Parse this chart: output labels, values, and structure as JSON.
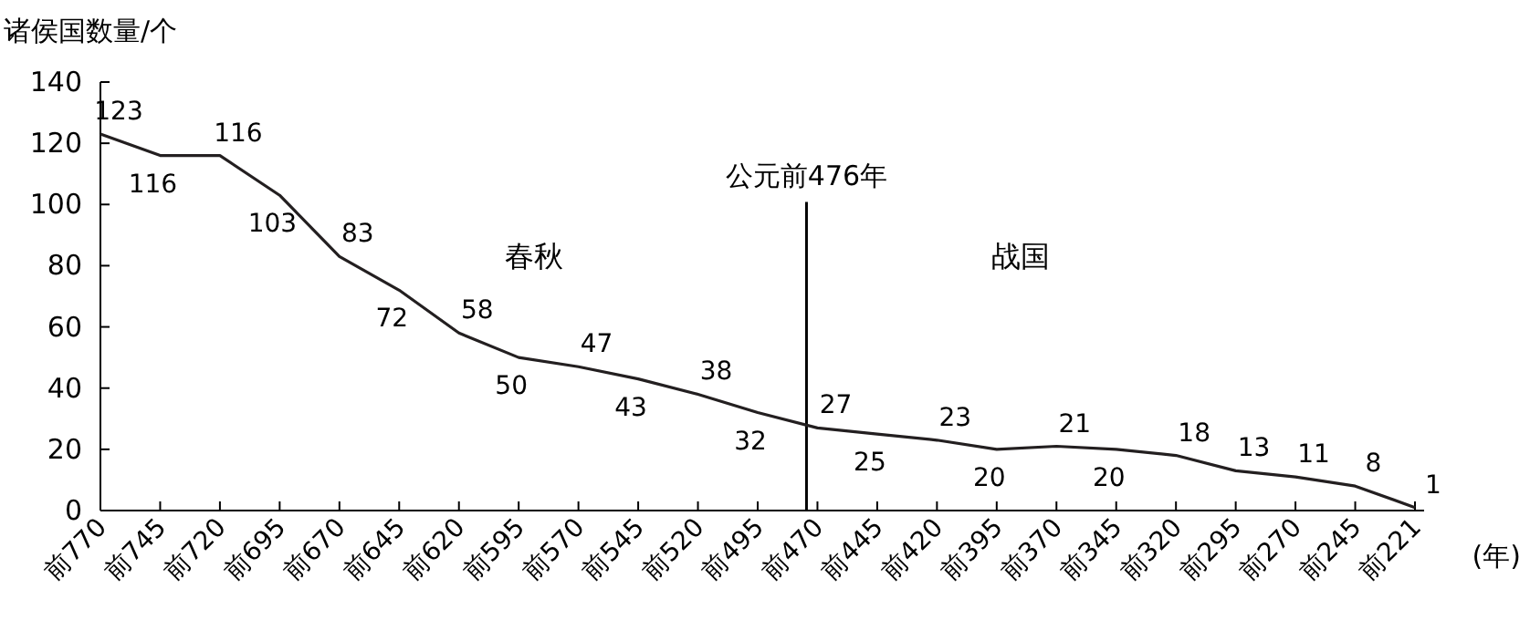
{
  "chart_data": {
    "type": "line",
    "ylabel": "诸侯国数量/个",
    "xlabel": "(年)",
    "categories": [
      "前770",
      "前745",
      "前720",
      "前695",
      "前670",
      "前645",
      "前620",
      "前595",
      "前570",
      "前545",
      "前520",
      "前495",
      "前470",
      "前445",
      "前420",
      "前395",
      "前370",
      "前345",
      "前320",
      "前295",
      "前270",
      "前245",
      "前221"
    ],
    "values": [
      123,
      116,
      116,
      103,
      83,
      72,
      58,
      50,
      47,
      43,
      38,
      32,
      27,
      25,
      23,
      20,
      21,
      20,
      18,
      13,
      11,
      8,
      1
    ],
    "color": "#231f20",
    "ylim": [
      0,
      140
    ],
    "yticks": [
      0,
      20,
      40,
      60,
      80,
      100,
      120,
      140
    ],
    "data_labels": true,
    "ref_lines": [
      {
        "axis": "x",
        "value": "前470",
        "label": "公元前476年"
      }
    ],
    "annotations": [
      "春秋",
      "战国"
    ]
  }
}
